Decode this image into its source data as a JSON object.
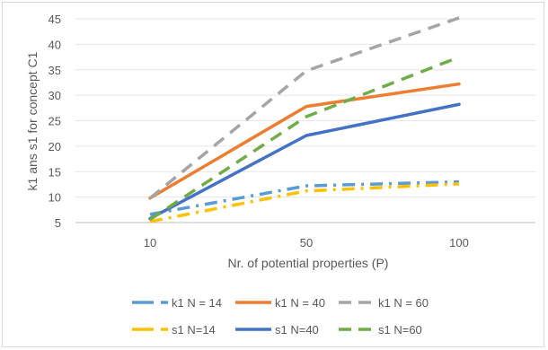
{
  "chart_data": {
    "type": "line",
    "x": [
      10,
      50,
      100
    ],
    "x_tick_labels": [
      "10",
      "50",
      "100"
    ],
    "xlabel": "Nr. of potential properties (P)",
    "ylabel": "k1 ans s1 for concept C1",
    "ylim": [
      5,
      45
    ],
    "y_ticks": [
      5,
      10,
      15,
      20,
      25,
      30,
      35,
      40,
      45
    ],
    "grid": "horizontal",
    "legend_position": "bottom",
    "series": [
      {
        "name": "k1 N = 14",
        "values": [
          6.6,
          12.2,
          13.0
        ],
        "color": "#5b9bd5",
        "style": "dash-dot"
      },
      {
        "name": "k1 N = 40",
        "values": [
          9.8,
          27.8,
          32.2
        ],
        "color": "#ed7d31",
        "style": "solid"
      },
      {
        "name": "k1 N = 60",
        "values": [
          9.8,
          34.8,
          45.2
        ],
        "color": "#a5a5a5",
        "style": "dash"
      },
      {
        "name": "s1 N=14",
        "values": [
          5.2,
          11.2,
          12.6
        ],
        "color": "#ffc000",
        "style": "dash-dot"
      },
      {
        "name": "s1 N=40",
        "values": [
          5.8,
          22.1,
          28.2
        ],
        "color": "#4472c4",
        "style": "solid"
      },
      {
        "name": "s1 N=60",
        "values": [
          5.6,
          25.8,
          37.5
        ],
        "color": "#70ad47",
        "style": "dash"
      }
    ]
  }
}
